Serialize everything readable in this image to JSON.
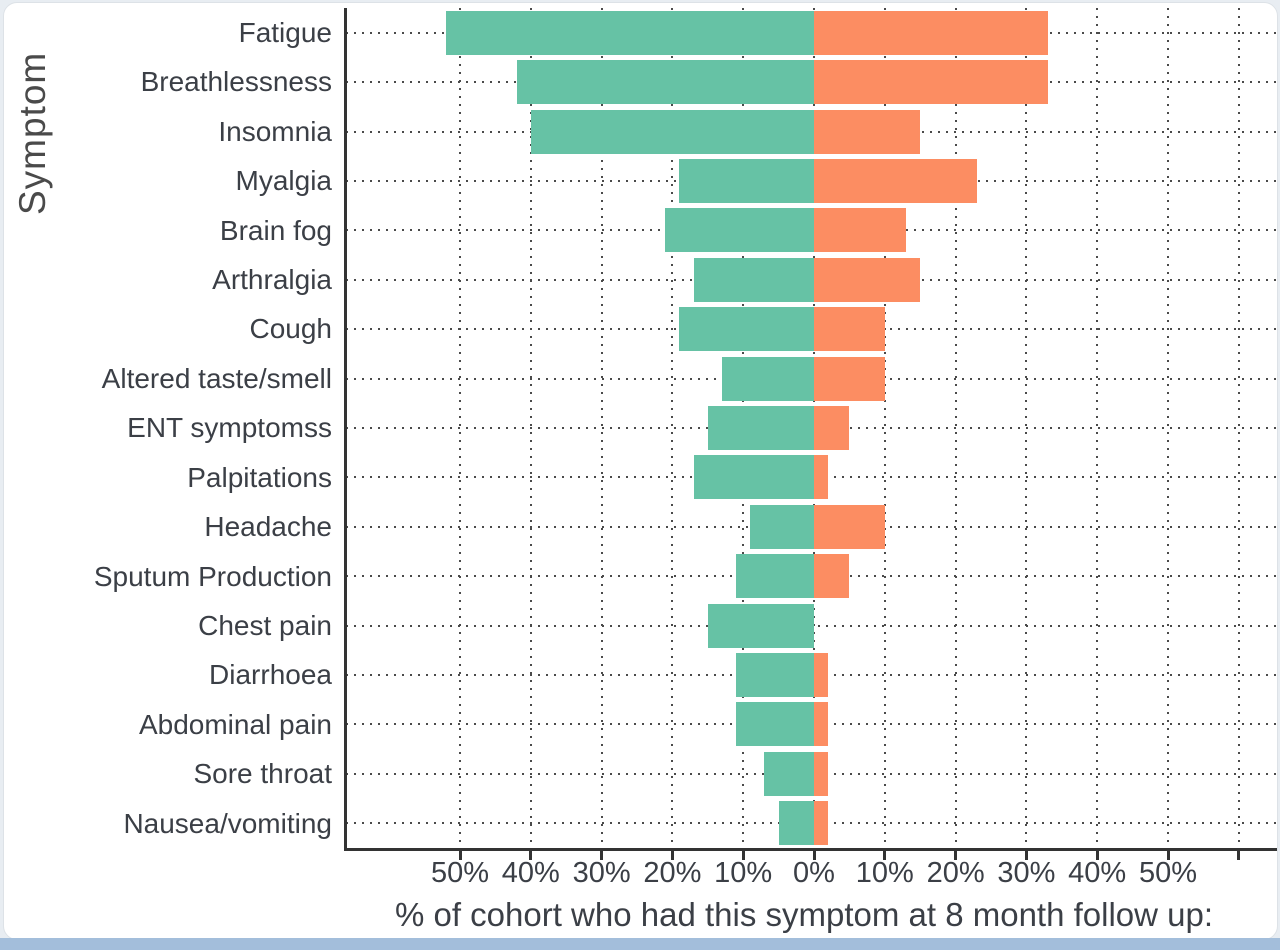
{
  "chart": {
    "y_axis_title": "Symptom",
    "x_axis_title": "% of cohort who had this symptom at 8 month follow up:",
    "x_tick_labels": [
      "50%",
      "40%",
      "30%",
      "20%",
      "10%",
      "0%",
      "10%",
      "20%",
      "30%",
      "40%",
      "50%"
    ],
    "colors": {
      "left_series": "#66C2A5",
      "right_series": "#FC8D62",
      "axis": "#333333",
      "grid": "#4a4a4a"
    }
  },
  "chart_data": {
    "type": "bar",
    "orientation": "horizontal-diverging",
    "title": "",
    "xlabel": "% of cohort who had this symptom at 8 month follow up:",
    "ylabel": "Symptom",
    "categories": [
      "Fatigue",
      "Breathlessness",
      "Insomnia",
      "Myalgia",
      "Brain fog",
      "Arthralgia",
      "Cough",
      "Altered taste/smell",
      "ENT symptomss",
      "Palpitations",
      "Headache",
      "Sputum Production",
      "Chest pain",
      "Diarrhoea",
      "Abdominal pain",
      "Sore throat",
      "Nausea/vomiting"
    ],
    "series": [
      {
        "name": "left_pct",
        "direction": "left",
        "color": "#66C2A5",
        "values": [
          52,
          42,
          40,
          19,
          21,
          17,
          19,
          13,
          15,
          17,
          9,
          11,
          15,
          11,
          11,
          7,
          5
        ]
      },
      {
        "name": "right_pct",
        "direction": "right",
        "color": "#FC8D62",
        "values": [
          33,
          33,
          15,
          23,
          13,
          15,
          10,
          10,
          5,
          2,
          10,
          5,
          0,
          2,
          2,
          2,
          2
        ]
      }
    ],
    "x_axis_ticks_pct": [
      -50,
      -40,
      -30,
      -20,
      -10,
      0,
      10,
      20,
      30,
      40,
      50
    ],
    "xlim": [
      -55,
      66
    ],
    "grid": "dotted, every 10% vertical and one horizontal per category"
  }
}
